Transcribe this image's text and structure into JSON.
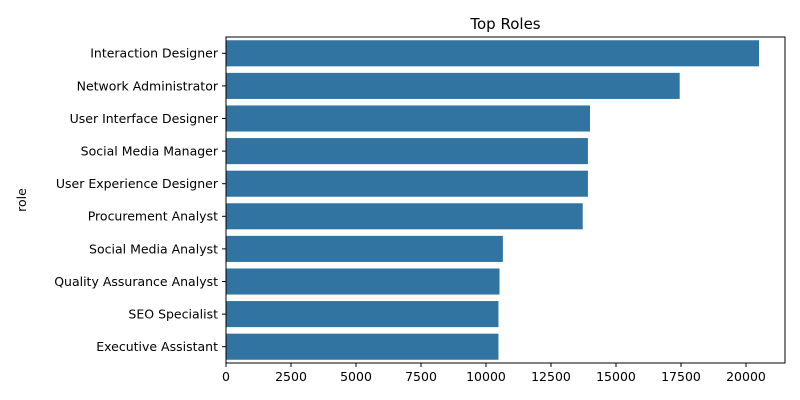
{
  "chart_data": {
    "type": "bar",
    "orientation": "horizontal",
    "title": "Top Roles",
    "xlabel": "",
    "ylabel": "role",
    "categories": [
      "Interaction Designer",
      "Network Administrator",
      "User Interface Designer",
      "Social Media Manager",
      "User Experience Designer",
      "Procurement Analyst",
      "Social Media Analyst",
      "Quality Assurance Analyst",
      "SEO Specialist",
      "Executive Assistant"
    ],
    "values": [
      20500,
      17450,
      14000,
      13920,
      13920,
      13720,
      10650,
      10520,
      10480,
      10480
    ],
    "xlim": [
      0,
      21500
    ],
    "xticks": [
      0,
      2500,
      5000,
      7500,
      10000,
      12500,
      15000,
      17500,
      20000
    ],
    "grid": false,
    "bar_color": "#3274a1"
  }
}
